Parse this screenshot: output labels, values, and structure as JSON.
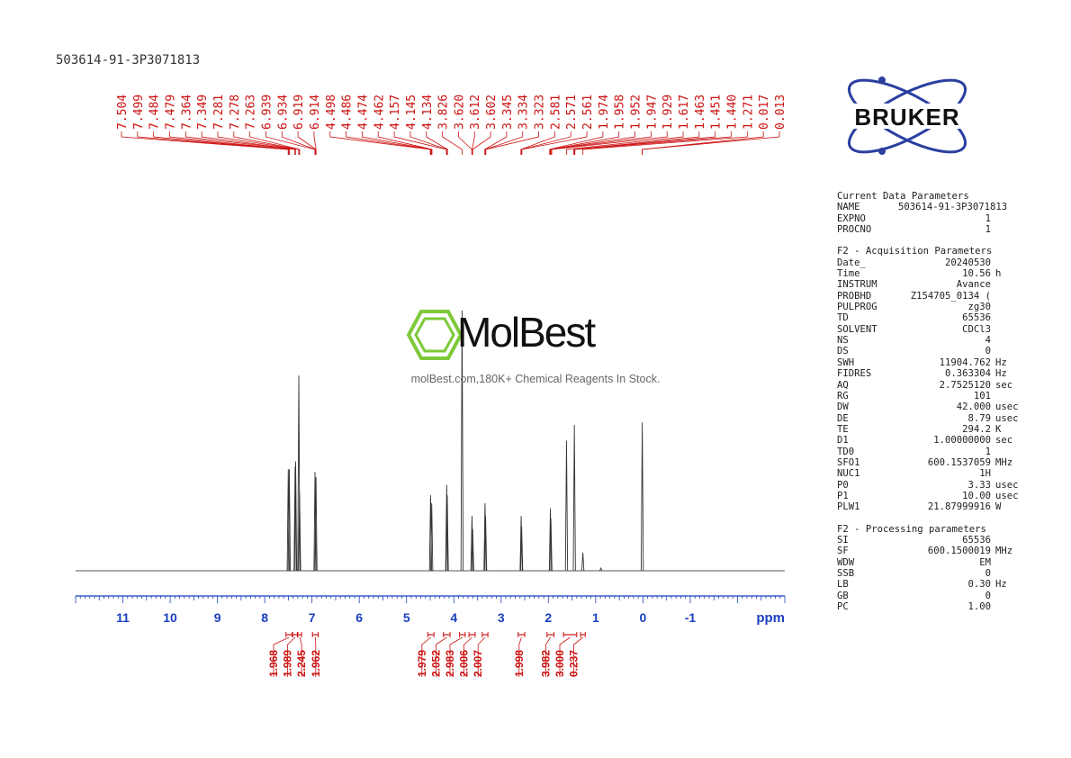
{
  "sample_name": "503614-91-3P3071813",
  "logo": {
    "text": "BRUKER",
    "color": "#2b3fa0"
  },
  "watermark": {
    "name": "MolBest",
    "tagline": "molBest.com,180K+ Chemical Reagents In Stock.",
    "color": "#7ec83a"
  },
  "chart_data": {
    "type": "line",
    "xlabel": "ppm",
    "xlim": [
      12,
      -3
    ],
    "x_ticks": [
      "11",
      "10",
      "9",
      "8",
      "7",
      "6",
      "5",
      "4",
      "3",
      "2",
      "1",
      "0",
      "-1"
    ],
    "x_tick_values": [
      11,
      10,
      9,
      8,
      7,
      6,
      5,
      4,
      3,
      2,
      1,
      0,
      -1
    ],
    "peak_labels": [
      "7.504",
      "7.499",
      "7.484",
      "7.479",
      "7.364",
      "7.349",
      "7.281",
      "7.278",
      "7.263",
      "6.939",
      "6.934",
      "6.919",
      "6.914",
      "4.498",
      "4.486",
      "4.474",
      "4.462",
      "4.157",
      "4.145",
      "4.134",
      "3.826",
      "3.620",
      "3.612",
      "3.602",
      "3.345",
      "3.334",
      "3.323",
      "2.581",
      "2.571",
      "2.561",
      "1.974",
      "1.958",
      "1.952",
      "1.947",
      "1.929",
      "1.617",
      "1.463",
      "1.451",
      "1.440",
      "1.271",
      "0.017",
      "0.013"
    ],
    "integrals": [
      {
        "value": "1.968",
        "from": 7.55,
        "to": 7.42
      },
      {
        "value": "1.989",
        "from": 7.41,
        "to": 7.31
      },
      {
        "value": "2.245",
        "from": 7.3,
        "to": 7.22
      },
      {
        "value": "1.962",
        "from": 6.99,
        "to": 6.87
      },
      {
        "value": "1.979",
        "from": 4.55,
        "to": 4.42
      },
      {
        "value": "2.052",
        "from": 4.22,
        "to": 4.08
      },
      {
        "value": "2.983",
        "from": 3.88,
        "to": 3.76
      },
      {
        "value": "2.006",
        "from": 3.68,
        "to": 3.55
      },
      {
        "value": "2.007",
        "from": 3.4,
        "to": 3.28
      },
      {
        "value": "1.998",
        "from": 2.64,
        "to": 2.5
      },
      {
        "value": "3.982",
        "from": 2.03,
        "to": 1.88
      },
      {
        "value": "3.000",
        "from": 1.68,
        "to": 1.4
      },
      {
        "value": "0.237",
        "from": 1.32,
        "to": 1.22
      }
    ],
    "peaks": [
      {
        "ppm": 7.502,
        "height": 0.39
      },
      {
        "ppm": 7.481,
        "height": 0.39
      },
      {
        "ppm": 7.357,
        "height": 0.4
      },
      {
        "ppm": 7.346,
        "height": 0.42
      },
      {
        "ppm": 7.279,
        "height": 0.75
      },
      {
        "ppm": 7.263,
        "height": 0.3
      },
      {
        "ppm": 6.936,
        "height": 0.38
      },
      {
        "ppm": 6.916,
        "height": 0.36
      },
      {
        "ppm": 4.492,
        "height": 0.29
      },
      {
        "ppm": 4.468,
        "height": 0.26
      },
      {
        "ppm": 4.151,
        "height": 0.33
      },
      {
        "ppm": 4.139,
        "height": 0.29
      },
      {
        "ppm": 3.826,
        "height": 1.0
      },
      {
        "ppm": 3.616,
        "height": 0.21
      },
      {
        "ppm": 3.602,
        "height": 0.16
      },
      {
        "ppm": 3.34,
        "height": 0.26
      },
      {
        "ppm": 3.328,
        "height": 0.21
      },
      {
        "ppm": 2.576,
        "height": 0.21
      },
      {
        "ppm": 2.566,
        "height": 0.17
      },
      {
        "ppm": 1.958,
        "height": 0.24
      },
      {
        "ppm": 1.947,
        "height": 0.2
      },
      {
        "ppm": 1.617,
        "height": 0.5
      },
      {
        "ppm": 1.451,
        "height": 0.56
      },
      {
        "ppm": 1.271,
        "height": 0.07
      },
      {
        "ppm": 0.89,
        "height": 0.01
      },
      {
        "ppm": 0.015,
        "height": 0.57
      }
    ]
  },
  "parameters": {
    "current": {
      "title": "Current Data Parameters",
      "rows": [
        {
          "k": "NAME",
          "v": "503614-91-3P3071813",
          "u": ""
        },
        {
          "k": "EXPNO",
          "v": "1",
          "u": ""
        },
        {
          "k": "PROCNO",
          "v": "1",
          "u": ""
        }
      ]
    },
    "acquisition": {
      "title": "F2 - Acquisition Parameters",
      "rows": [
        {
          "k": "Date_",
          "v": "20240530",
          "u": ""
        },
        {
          "k": "Time",
          "v": "10.56",
          "u": "h"
        },
        {
          "k": "INSTRUM",
          "v": "Avance",
          "u": ""
        },
        {
          "k": "PROBHD",
          "v": "Z154705_0134 (",
          "u": ""
        },
        {
          "k": "PULPROG",
          "v": "zg30",
          "u": ""
        },
        {
          "k": "TD",
          "v": "65536",
          "u": ""
        },
        {
          "k": "SOLVENT",
          "v": "CDCl3",
          "u": ""
        },
        {
          "k": "NS",
          "v": "4",
          "u": ""
        },
        {
          "k": "DS",
          "v": "0",
          "u": ""
        },
        {
          "k": "SWH",
          "v": "11904.762",
          "u": "Hz"
        },
        {
          "k": "FIDRES",
          "v": "0.363304",
          "u": "Hz"
        },
        {
          "k": "AQ",
          "v": "2.7525120",
          "u": "sec"
        },
        {
          "k": "RG",
          "v": "101",
          "u": ""
        },
        {
          "k": "DW",
          "v": "42.000",
          "u": "usec"
        },
        {
          "k": "DE",
          "v": "8.79",
          "u": "usec"
        },
        {
          "k": "TE",
          "v": "294.2",
          "u": "K"
        },
        {
          "k": "D1",
          "v": "1.00000000",
          "u": "sec"
        },
        {
          "k": "TD0",
          "v": "1",
          "u": ""
        },
        {
          "k": "SFO1",
          "v": "600.1537059",
          "u": "MHz"
        },
        {
          "k": "NUC1",
          "v": "1H",
          "u": ""
        },
        {
          "k": "P0",
          "v": "3.33",
          "u": "usec"
        },
        {
          "k": "P1",
          "v": "10.00",
          "u": "usec"
        },
        {
          "k": "PLW1",
          "v": "21.87999916",
          "u": "W"
        }
      ]
    },
    "processing": {
      "title": "F2 - Processing parameters",
      "rows": [
        {
          "k": "SI",
          "v": "65536",
          "u": ""
        },
        {
          "k": "SF",
          "v": "600.1500019",
          "u": "MHz"
        },
        {
          "k": "WDW",
          "v": "EM",
          "u": ""
        },
        {
          "k": "SSB",
          "v": "0",
          "u": ""
        },
        {
          "k": "LB",
          "v": "0.30",
          "u": "Hz"
        },
        {
          "k": "GB",
          "v": "0",
          "u": ""
        },
        {
          "k": "PC",
          "v": "1.00",
          "u": ""
        }
      ]
    }
  }
}
